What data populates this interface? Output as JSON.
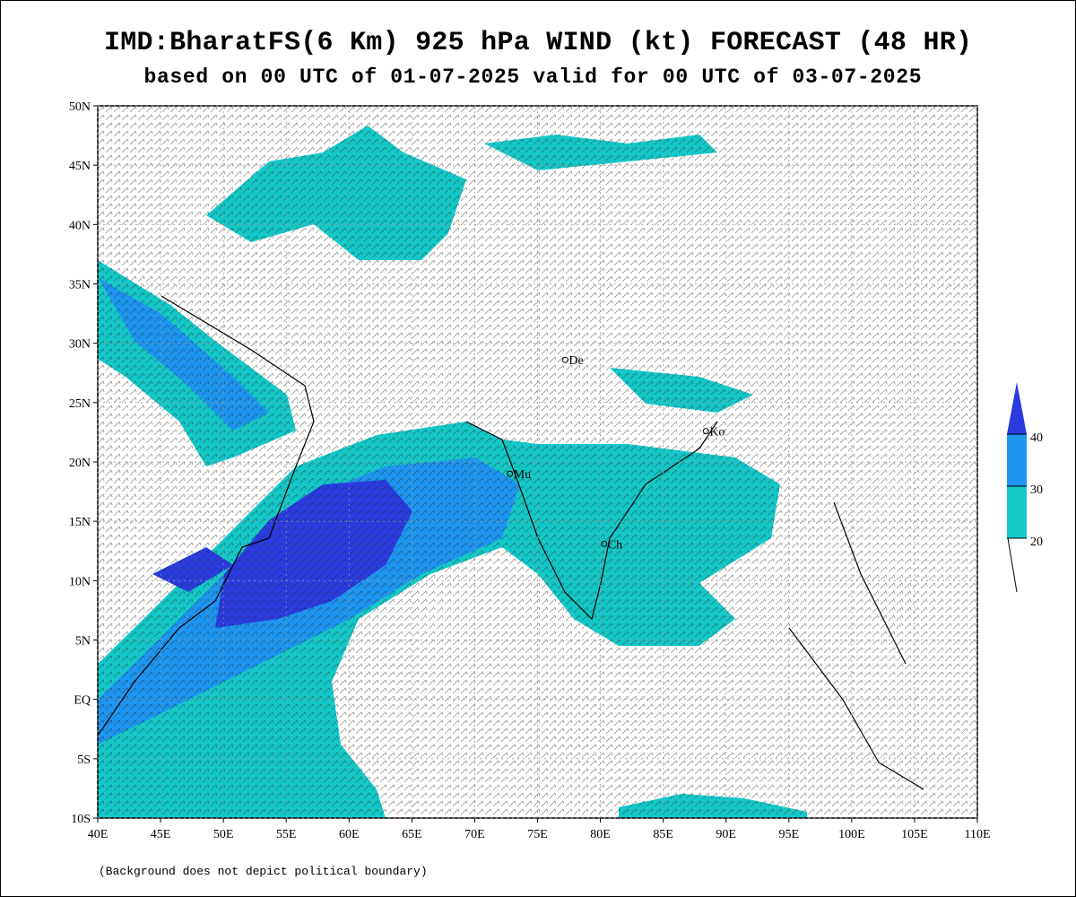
{
  "map": {
    "title": "IMD:BharatFS(6 Km) 925 hPa WIND (kt) FORECAST (48 HR)",
    "subtitle": "based on 00 UTC of 01-07-2025 valid for 00 UTC of 03-07-2025",
    "xlim": [
      40,
      110
    ],
    "ylim": [
      -10,
      50
    ],
    "xticks": [
      {
        "value": 40,
        "label": "40E"
      },
      {
        "value": 45,
        "label": "45E"
      },
      {
        "value": 50,
        "label": "50E"
      },
      {
        "value": 55,
        "label": "55E"
      },
      {
        "value": 60,
        "label": "60E"
      },
      {
        "value": 65,
        "label": "65E"
      },
      {
        "value": 70,
        "label": "70E"
      },
      {
        "value": 75,
        "label": "75E"
      },
      {
        "value": 80,
        "label": "80E"
      },
      {
        "value": 85,
        "label": "85E"
      },
      {
        "value": 90,
        "label": "90E"
      },
      {
        "value": 95,
        "label": "95E"
      },
      {
        "value": 100,
        "label": "100E"
      },
      {
        "value": 105,
        "label": "105E"
      },
      {
        "value": 110,
        "label": "110E"
      }
    ],
    "yticks": [
      {
        "value": -10,
        "label": "10S"
      },
      {
        "value": -5,
        "label": "5S"
      },
      {
        "value": 0,
        "label": "EQ"
      },
      {
        "value": 5,
        "label": "5N"
      },
      {
        "value": 10,
        "label": "10N"
      },
      {
        "value": 15,
        "label": "15N"
      },
      {
        "value": 20,
        "label": "20N"
      },
      {
        "value": 25,
        "label": "25N"
      },
      {
        "value": 30,
        "label": "30N"
      },
      {
        "value": 35,
        "label": "35N"
      },
      {
        "value": 40,
        "label": "40N"
      },
      {
        "value": 45,
        "label": "45N"
      },
      {
        "value": 50,
        "label": "50N"
      }
    ],
    "grid": true,
    "colorbar": {
      "levels": [
        20,
        30,
        40
      ],
      "colors": [
        "#14c8c8",
        "#1e96f0",
        "#2a3ce0"
      ]
    },
    "cities": [
      {
        "label": "De",
        "lon": 77.2,
        "lat": 28.6
      },
      {
        "label": "Ko",
        "lon": 88.4,
        "lat": 22.6
      },
      {
        "label": "Mu",
        "lon": 72.8,
        "lat": 19.0
      },
      {
        "label": "Ch",
        "lon": 80.3,
        "lat": 13.1
      }
    ],
    "footnote": "(Background does not depict political boundary)"
  }
}
